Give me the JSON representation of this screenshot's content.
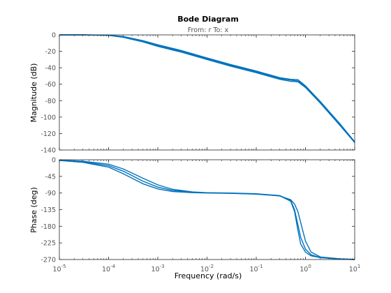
{
  "chart_data": {
    "type": "line",
    "title": "Bode Diagram",
    "subtitle": "From: r  To: x",
    "xlabel": "Frequency  (rad/s)",
    "x_scale": "log",
    "xlim": [
      1e-05,
      10
    ],
    "x_tick_labels": [
      "10-5",
      "10-4",
      "10-3",
      "10-2",
      "10-1",
      "100",
      "101"
    ],
    "x_ticks": [
      {
        "base": "10",
        "exp": "-5"
      },
      {
        "base": "10",
        "exp": "-4"
      },
      {
        "base": "10",
        "exp": "-3"
      },
      {
        "base": "10",
        "exp": "-2"
      },
      {
        "base": "10",
        "exp": "-1"
      },
      {
        "base": "10",
        "exp": "0"
      },
      {
        "base": "10",
        "exp": "1"
      }
    ],
    "line_color": "#0072BD",
    "grid": false,
    "panels": [
      {
        "ylabel": "Magnitude (dB)",
        "ylim": [
          -140,
          0
        ],
        "yticks": [
          0,
          -20,
          -40,
          -60,
          -80,
          -100,
          -120,
          -140
        ],
        "ytick_labels": [
          "0",
          "-20",
          "-40",
          "-60",
          "-80",
          "-100",
          "-120",
          "-140"
        ],
        "series": [
          {
            "x": [
              1e-05,
              3e-05,
              0.0001,
              0.0002,
              0.0005,
              0.001,
              0.003,
              0.01,
              0.03,
              0.1,
              0.3,
              0.5,
              0.7,
              1,
              2,
              5,
              10
            ],
            "values": [
              0,
              0,
              -0.4,
              -2,
              -7,
              -12,
              -19,
              -28,
              -36,
              -44,
              -52,
              -54,
              -54.5,
              -62,
              -81,
              -108,
              -130
            ]
          },
          {
            "x": [
              1e-05,
              3e-05,
              0.0001,
              0.0002,
              0.0005,
              0.001,
              0.003,
              0.01,
              0.03,
              0.1,
              0.3,
              0.5,
              0.7,
              1,
              2,
              5,
              10
            ],
            "values": [
              0,
              0,
              -0.6,
              -3,
              -8.5,
              -14,
              -21,
              -30,
              -38,
              -46,
              -54,
              -56.5,
              -57,
              -64,
              -83,
              -110,
              -131
            ]
          },
          {
            "x": [
              1e-05,
              3e-05,
              0.0001,
              0.0002,
              0.0005,
              0.001,
              0.003,
              0.01,
              0.03,
              0.1,
              0.3,
              0.5,
              0.7,
              1,
              2,
              5,
              10
            ],
            "values": [
              0,
              0,
              -0.5,
              -2.5,
              -7.5,
              -13,
              -20,
              -29,
              -37,
              -45,
              -53,
              -55,
              -56,
              -63,
              -82,
              -109,
              -130
            ]
          }
        ]
      },
      {
        "ylabel": "Phase (deg)",
        "ylim": [
          -270,
          0
        ],
        "yticks": [
          0,
          -45,
          -90,
          -135,
          -180,
          -225,
          -270
        ],
        "ytick_labels": [
          "0",
          "-45",
          "-90",
          "-135",
          "-180",
          "-225",
          "-270"
        ],
        "series": [
          {
            "x": [
              1e-05,
              3e-05,
              0.0001,
              0.0002,
              0.0005,
              0.001,
              0.002,
              0.005,
              0.01,
              0.03,
              0.1,
              0.3,
              0.5,
              0.6,
              0.7,
              0.8,
              1,
              1.3,
              2,
              5,
              10
            ],
            "values": [
              -1,
              -4,
              -12,
              -25,
              -50,
              -68,
              -80,
              -87,
              -89,
              -90,
              -92,
              -97,
              -110,
              -135,
              -175,
              -210,
              -242,
              -257,
              -265,
              -269,
              -270
            ]
          },
          {
            "x": [
              1e-05,
              3e-05,
              0.0001,
              0.0002,
              0.0005,
              0.001,
              0.002,
              0.005,
              0.01,
              0.03,
              0.1,
              0.3,
              0.5,
              0.6,
              0.7,
              0.8,
              1,
              1.3,
              2,
              5,
              10
            ],
            "values": [
              -2,
              -7,
              -20,
              -38,
              -65,
              -79,
              -86,
              -89,
              -90,
              -91,
              -93,
              -98,
              -108,
              -120,
              -140,
              -170,
              -220,
              -250,
              -263,
              -268,
              -270
            ]
          },
          {
            "x": [
              1e-05,
              3e-05,
              0.0001,
              0.0002,
              0.0005,
              0.001,
              0.002,
              0.005,
              0.01,
              0.03,
              0.1,
              0.3,
              0.5,
              0.6,
              0.7,
              0.8,
              1,
              1.3,
              2,
              5,
              10
            ],
            "values": [
              -1.5,
              -5.5,
              -16,
              -31,
              -58,
              -74,
              -83,
              -88,
              -89.5,
              -90.5,
              -92.5,
              -97.5,
              -112,
              -140,
              -190,
              -228,
              -250,
              -260,
              -265,
              -269,
              -270
            ]
          }
        ]
      }
    ]
  }
}
